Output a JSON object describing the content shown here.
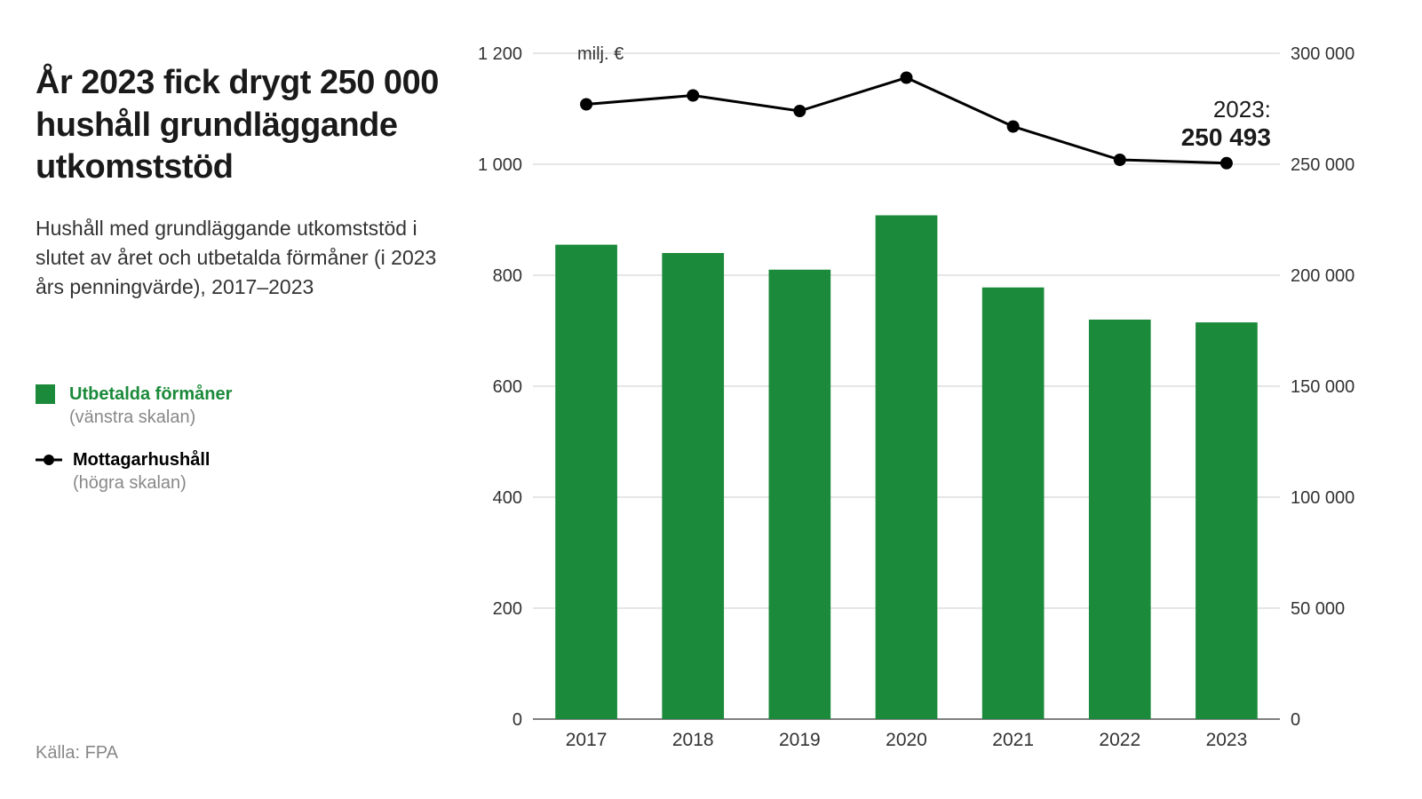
{
  "header": {
    "title": "År 2023 fick drygt 250 000 hushåll grundläggande utkomststöd",
    "subtitle": "Hushåll med grundläggande utkomststöd i slutet av året och utbetalda förmåner (i 2023 års penningvärde), 2017–2023"
  },
  "legend": {
    "bars": {
      "label": "Utbetalda förmåner",
      "sub": "(vänstra skalan)",
      "color": "#1b8a3a"
    },
    "line": {
      "label": "Mottagarhushåll",
      "sub": "(högra skalan)",
      "color": "#000000"
    }
  },
  "source": "Källa: FPA",
  "chart": {
    "type": "bar+line",
    "categories": [
      "2017",
      "2018",
      "2019",
      "2020",
      "2021",
      "2022",
      "2023"
    ],
    "bars": {
      "values": [
        855,
        840,
        810,
        908,
        778,
        720,
        715
      ],
      "color": "#1b8a3a",
      "bar_width_ratio": 0.58
    },
    "line": {
      "values": [
        277000,
        281000,
        274000,
        289000,
        267000,
        252000,
        250493
      ],
      "color": "#000000",
      "dot_radius": 7,
      "stroke_width": 3
    },
    "left_axis": {
      "min": 0,
      "max": 1200,
      "ticks": [
        0,
        200,
        400,
        600,
        800,
        1000,
        1200
      ],
      "tick_labels": [
        "0",
        "200",
        "400",
        "600",
        "800",
        "1 000",
        "1 200"
      ],
      "unit": "milj. €",
      "label_fontsize": 20
    },
    "right_axis": {
      "min": 0,
      "max": 300000,
      "ticks": [
        0,
        50000,
        100000,
        150000,
        200000,
        250000,
        300000
      ],
      "tick_labels": [
        "0",
        "50 000",
        "100 000",
        "150 000",
        "200 000",
        "250 000",
        "300 000"
      ],
      "label_fontsize": 20
    },
    "annotation": {
      "year": "2023:",
      "value": "250 493"
    },
    "background_color": "#ffffff",
    "grid_color": "#cccccc",
    "baseline_color": "#555555"
  }
}
